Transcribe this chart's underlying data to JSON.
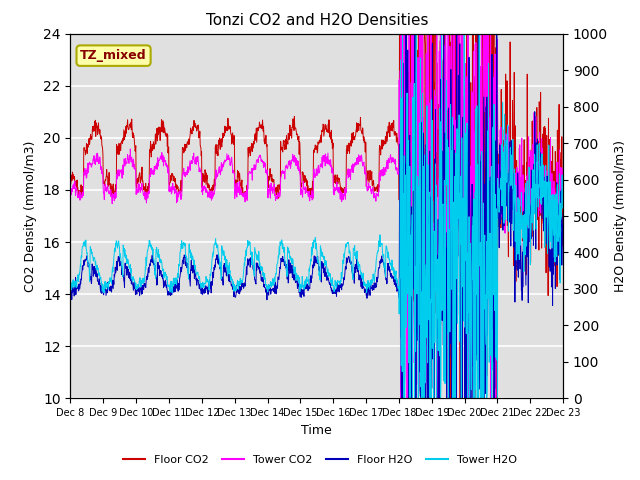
{
  "title": "Tonzi CO2 and H2O Densities",
  "xlabel": "Time",
  "ylabel_left": "CO2 Density (mmol/m3)",
  "ylabel_right": "H2O Density (mmol/m3)",
  "ylim_left": [
    10,
    24
  ],
  "ylim_right": [
    0,
    1000
  ],
  "yticks_left": [
    10,
    12,
    14,
    16,
    18,
    20,
    22,
    24
  ],
  "yticks_right": [
    0,
    100,
    200,
    300,
    400,
    500,
    600,
    700,
    800,
    900,
    1000
  ],
  "xtick_labels": [
    "Dec 8",
    "Dec 9",
    "Dec 10",
    "Dec 11",
    "Dec 12",
    "Dec 13",
    "Dec 14",
    "Dec 15",
    "Dec 16",
    "Dec 17",
    "Dec 18",
    "Dec 19",
    "Dec 20",
    "Dec 21",
    "Dec 22",
    "Dec 23"
  ],
  "colors": {
    "floor_co2": "#cc0000",
    "tower_co2": "#ff00ff",
    "floor_h2o": "#0000bb",
    "tower_h2o": "#00ccee"
  },
  "legend_labels": [
    "Floor CO2",
    "Tower CO2",
    "Floor H2O",
    "Tower H2O"
  ],
  "annotation_text": "TZ_mixed",
  "background_color": "#e0e0e0",
  "grid_color": "white",
  "num_days": 15,
  "noise_seed": 42
}
